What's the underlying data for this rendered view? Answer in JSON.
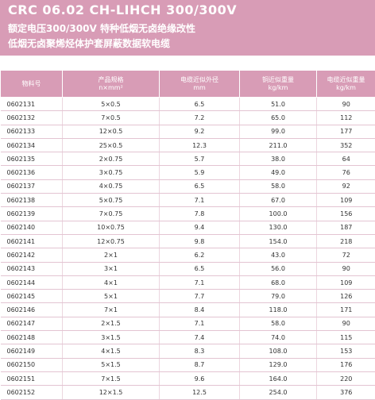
{
  "header": {
    "title": "CRC 06.02 CH-LIHCH 300/300V",
    "subtitle1": "额定电压300/300V 特种低烟无卤绝缘改性",
    "subtitle2": "低烟无卤聚烯烃体护套屏蔽数据软电缆"
  },
  "table": {
    "columns": [
      [
        "物料号"
      ],
      [
        "产品规格",
        "n×mm²"
      ],
      [
        "电缆近似外径",
        "mm"
      ],
      [
        "铜近似重量",
        "kg/km"
      ],
      [
        "电缆近似重量",
        "kg/km"
      ]
    ],
    "rows": [
      [
        "0602131",
        "5×0.5",
        "6.5",
        "51.0",
        "90"
      ],
      [
        "0602132",
        "7×0.5",
        "7.2",
        "65.0",
        "112"
      ],
      [
        "0602133",
        "12×0.5",
        "9.2",
        "99.0",
        "177"
      ],
      [
        "0602134",
        "25×0.5",
        "12.3",
        "211.0",
        "352"
      ],
      [
        "0602135",
        "2×0.75",
        "5.7",
        "38.0",
        "64"
      ],
      [
        "0602136",
        "3×0.75",
        "5.9",
        "49.0",
        "76"
      ],
      [
        "0602137",
        "4×0.75",
        "6.5",
        "58.0",
        "92"
      ],
      [
        "0602138",
        "5×0.75",
        "7.1",
        "67.0",
        "109"
      ],
      [
        "0602139",
        "7×0.75",
        "7.8",
        "100.0",
        "156"
      ],
      [
        "0602140",
        "10×0.75",
        "9.4",
        "130.0",
        "187"
      ],
      [
        "0602141",
        "12×0.75",
        "9.8",
        "154.0",
        "218"
      ],
      [
        "0602142",
        "2×1",
        "6.2",
        "43.0",
        "72"
      ],
      [
        "0602143",
        "3×1",
        "6.5",
        "56.0",
        "90"
      ],
      [
        "0602144",
        "4×1",
        "7.1",
        "68.0",
        "109"
      ],
      [
        "0602145",
        "5×1",
        "7.7",
        "79.0",
        "126"
      ],
      [
        "0602146",
        "7×1",
        "8.4",
        "118.0",
        "171"
      ],
      [
        "0602147",
        "2×1.5",
        "7.1",
        "58.0",
        "90"
      ],
      [
        "0602148",
        "3×1.5",
        "7.4",
        "74.0",
        "115"
      ],
      [
        "0602149",
        "4×1.5",
        "8.3",
        "108.0",
        "153"
      ],
      [
        "0602150",
        "5×1.5",
        "8.7",
        "129.0",
        "176"
      ],
      [
        "0602151",
        "7×1.5",
        "9.6",
        "164.0",
        "220"
      ],
      [
        "0602152",
        "12×1.5",
        "12.5",
        "254.0",
        "376"
      ]
    ]
  }
}
